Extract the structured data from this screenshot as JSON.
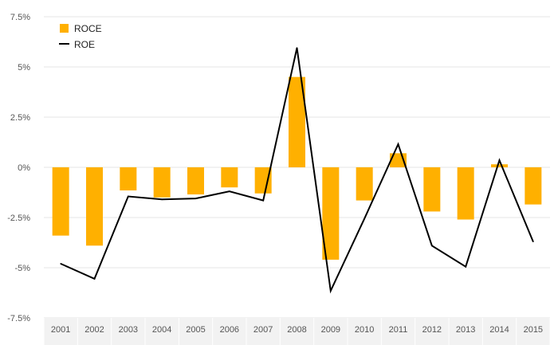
{
  "chart_data": {
    "type": "bar",
    "categories": [
      "2001",
      "2002",
      "2003",
      "2004",
      "2005",
      "2006",
      "2007",
      "2008",
      "2009",
      "2010",
      "2011",
      "2012",
      "2013",
      "2014",
      "2015"
    ],
    "series": [
      {
        "name": "ROCE",
        "type": "bar",
        "color": "#FFB000",
        "values": [
          -3.4,
          -3.9,
          -1.15,
          -1.5,
          -1.35,
          -1.0,
          -1.3,
          4.5,
          -4.6,
          -1.65,
          0.7,
          -2.2,
          -2.6,
          0.15,
          -1.85
        ]
      },
      {
        "name": "ROE",
        "type": "line",
        "color": "#000000",
        "values": [
          -4.8,
          -5.55,
          -1.45,
          -1.6,
          -1.55,
          -1.2,
          -1.65,
          5.95,
          -6.15,
          -2.55,
          1.15,
          -3.9,
          -4.95,
          0.35,
          -3.7
        ]
      }
    ],
    "yticks": [
      {
        "value": 7.5,
        "label": "7.5%"
      },
      {
        "value": 5,
        "label": "5%"
      },
      {
        "value": 2.5,
        "label": "2.5%"
      },
      {
        "value": 0,
        "label": "0%"
      },
      {
        "value": -2.5,
        "label": "-2.5%"
      },
      {
        "value": -5,
        "label": "-5%"
      },
      {
        "value": -7.5,
        "label": "-7.5%"
      }
    ],
    "ylim": [
      -7.5,
      7.5
    ],
    "grid": true,
    "legend": "top-left",
    "title": "",
    "xlabel": "",
    "ylabel": ""
  }
}
